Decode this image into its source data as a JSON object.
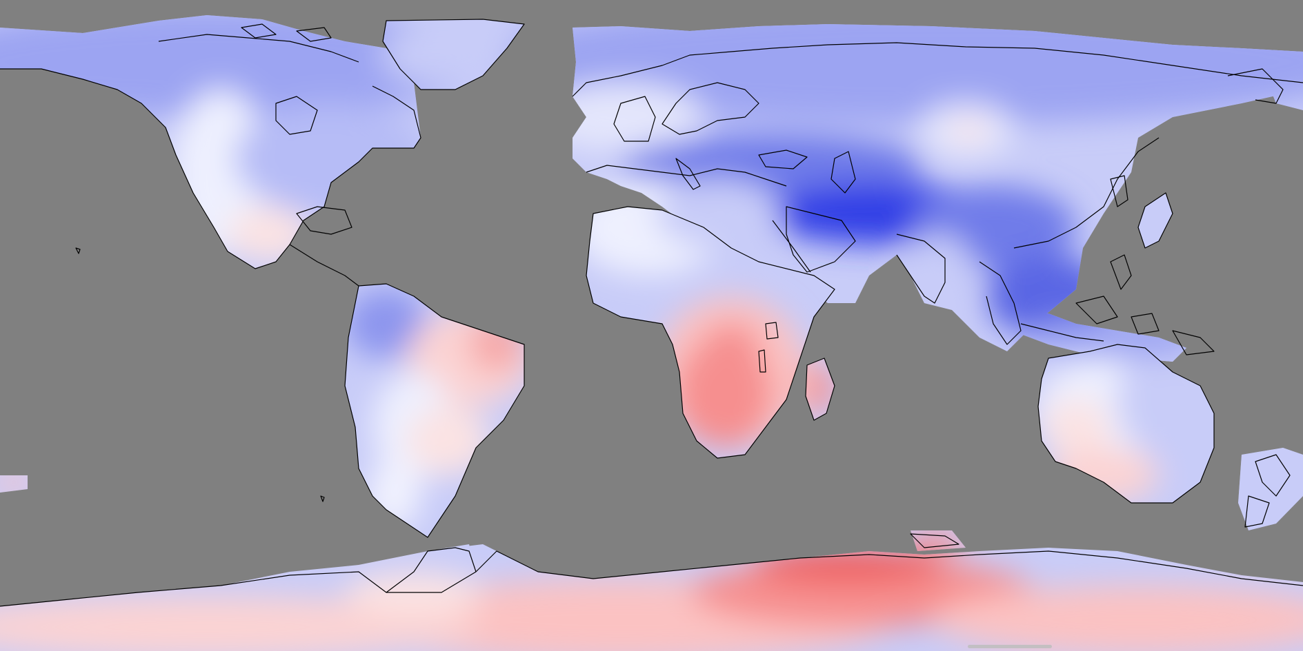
{
  "map": {
    "projection": "equirectangular",
    "style": "global anomaly field, diverging blue-white-red palette",
    "ocean_mask_color": "#808080",
    "coastline_color": "#000000",
    "palette": {
      "deep_blue": "#3340e6",
      "blue": "#6f7ce9",
      "mid_blue": "#9ca4f2",
      "light_blue": "#c8ccf8",
      "pale_blue": "#e4e6fc",
      "neutral": "#f4f4fe",
      "pale_red": "#fbe3e3",
      "light_red": "#fbc2c2",
      "red": "#f68f8f",
      "strong_red": "#ef5d5d"
    }
  },
  "ui": {
    "home_indicator": "home-indicator"
  }
}
